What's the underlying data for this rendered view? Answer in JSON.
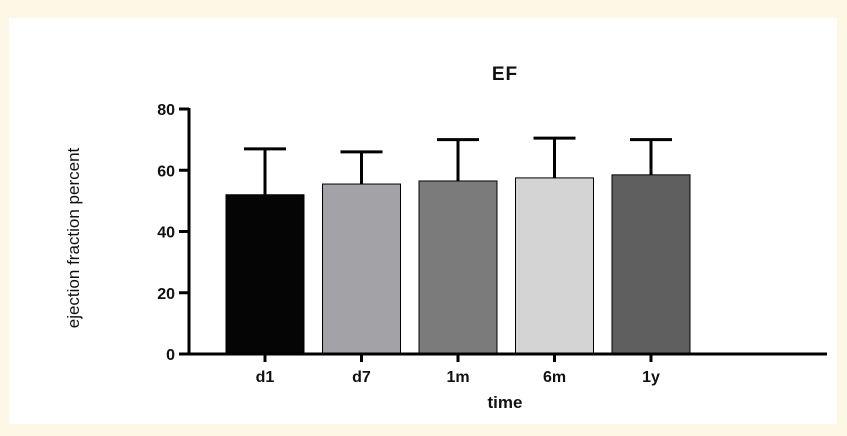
{
  "chart_data": {
    "type": "bar",
    "title": "EF",
    "xlabel": "time",
    "ylabel": "ejection fraction percent",
    "categories": [
      "d1",
      "d7",
      "1m",
      "6m",
      "1y"
    ],
    "values": [
      52,
      55.5,
      56.5,
      57.5,
      58.5
    ],
    "error_upper": [
      67,
      66,
      70,
      70.5,
      70
    ],
    "bar_colors": [
      "#050505",
      "#a3a3a7",
      "#7b7b7b",
      "#d4d4d4",
      "#5f5f5f"
    ],
    "ylim": [
      0,
      80
    ],
    "yticks": [
      0,
      20,
      40,
      60,
      80
    ],
    "grid": false,
    "legend": false
  }
}
